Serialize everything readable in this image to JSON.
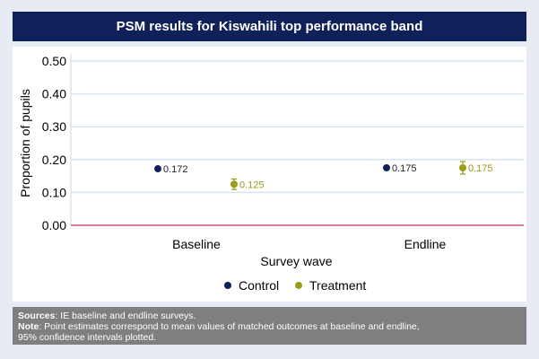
{
  "title": "PSM results for Kiswahili top performance band",
  "notes": {
    "sources_label": "Sources",
    "sources_text": ": IE baseline and endline surveys.",
    "note_label": "Note",
    "note_text": ": Point estimates correspond to mean values of matched outcomes at baseline and endline,",
    "note_text_2": "95% confidence intervals plotted."
  },
  "colors": {
    "control": "#0f2158",
    "treatment": "#9b9b1a",
    "zero_line": "#c0395f",
    "grid": "#d9e6f2"
  },
  "chart_data": {
    "type": "scatter",
    "title": "PSM results for Kiswahili top performance band",
    "xlabel": "Survey wave",
    "ylabel": "Proportion of pupils",
    "categories": [
      "Baseline",
      "Endline"
    ],
    "ylim": [
      0,
      0.5
    ],
    "yticks": [
      "0.00",
      "0.10",
      "0.20",
      "0.30",
      "0.40",
      "0.50"
    ],
    "grid": true,
    "legend": "bottom-center",
    "series": [
      {
        "name": "Control",
        "values": [
          0.172,
          0.175
        ],
        "labels": [
          "0.172",
          "0.175"
        ],
        "ci_low": [
          0.172,
          0.175
        ],
        "ci_high": [
          0.172,
          0.175
        ]
      },
      {
        "name": "Treatment",
        "values": [
          0.125,
          0.175
        ],
        "labels": [
          "0.125",
          "0.175"
        ],
        "ci_low": [
          0.109,
          0.156
        ],
        "ci_high": [
          0.141,
          0.194
        ]
      }
    ]
  }
}
